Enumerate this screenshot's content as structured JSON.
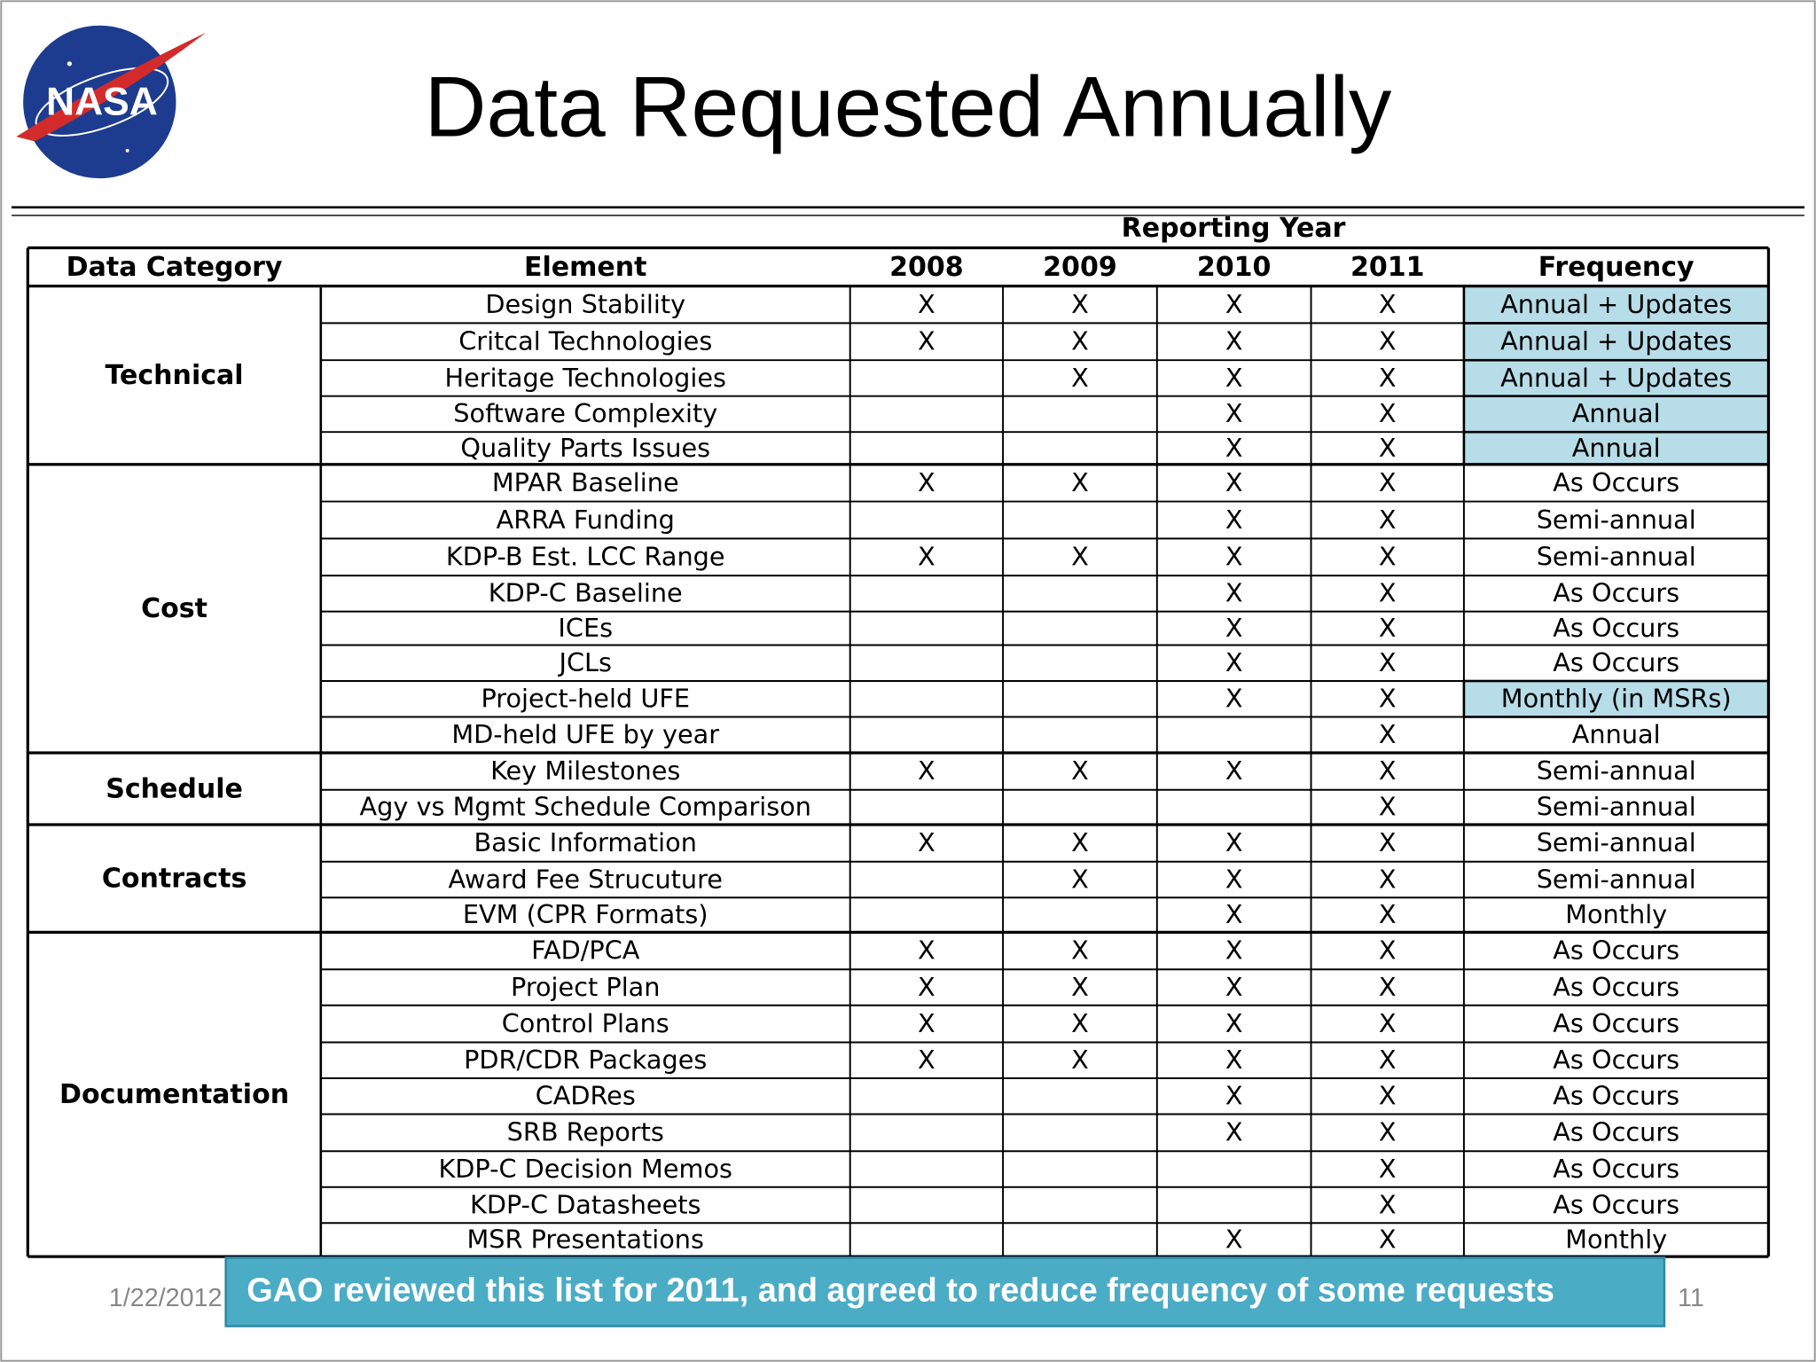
{
  "logo": {
    "text": "NASA"
  },
  "header": {
    "title": "Data Requested Annually"
  },
  "table": {
    "super_header": "Reporting Year",
    "columns": [
      "Data Category",
      "Element",
      "2008",
      "2009",
      "2010",
      "2011",
      "Frequency"
    ],
    "groups": [
      {
        "category": "Technical",
        "rows": [
          {
            "element": "Design Stability",
            "years": [
              "X",
              "X",
              "X",
              "X"
            ],
            "frequency": "Annual + Updates",
            "highlight": true
          },
          {
            "element": "Critcal Technologies",
            "years": [
              "X",
              "X",
              "X",
              "X"
            ],
            "frequency": "Annual + Updates",
            "highlight": true
          },
          {
            "element": "Heritage Technologies",
            "years": [
              null,
              "X",
              "X",
              "X"
            ],
            "frequency": "Annual + Updates",
            "highlight": true
          },
          {
            "element": "Software Complexity",
            "years": [
              null,
              null,
              "X",
              "X"
            ],
            "frequency": "Annual",
            "highlight": true
          },
          {
            "element": "Quality Parts Issues",
            "years": [
              null,
              null,
              "X",
              "X"
            ],
            "frequency": "Annual",
            "highlight": true
          }
        ]
      },
      {
        "category": "Cost",
        "rows": [
          {
            "element": "MPAR Baseline",
            "years": [
              "X",
              "X",
              "X",
              "X"
            ],
            "frequency": "As Occurs",
            "highlight": false
          },
          {
            "element": "ARRA Funding",
            "years": [
              null,
              null,
              "X",
              "X"
            ],
            "frequency": "Semi-annual",
            "highlight": false
          },
          {
            "element": "KDP-B Est. LCC Range",
            "years": [
              "X",
              "X",
              "X",
              "X"
            ],
            "frequency": "Semi-annual",
            "highlight": false
          },
          {
            "element": "KDP-C Baseline",
            "years": [
              null,
              null,
              "X",
              "X"
            ],
            "frequency": "As Occurs",
            "highlight": false
          },
          {
            "element": "ICEs",
            "years": [
              null,
              null,
              "X",
              "X"
            ],
            "frequency": "As Occurs",
            "highlight": false
          },
          {
            "element": "JCLs",
            "years": [
              null,
              null,
              "X",
              "X"
            ],
            "frequency": "As Occurs",
            "highlight": false
          },
          {
            "element": "Project-held UFE",
            "years": [
              null,
              null,
              "X",
              "X"
            ],
            "frequency": "Monthly (in MSRs)",
            "highlight": true
          },
          {
            "element": "MD-held UFE by year",
            "years": [
              null,
              null,
              null,
              "X"
            ],
            "frequency": "Annual",
            "highlight": false
          }
        ]
      },
      {
        "category": "Schedule",
        "rows": [
          {
            "element": "Key Milestones",
            "years": [
              "X",
              "X",
              "X",
              "X"
            ],
            "frequency": "Semi-annual",
            "highlight": false
          },
          {
            "element": "Agy vs Mgmt Schedule Comparison",
            "years": [
              null,
              null,
              null,
              "X"
            ],
            "frequency": "Semi-annual",
            "highlight": false
          }
        ]
      },
      {
        "category": "Contracts",
        "rows": [
          {
            "element": "Basic Information",
            "years": [
              "X",
              "X",
              "X",
              "X"
            ],
            "frequency": "Semi-annual",
            "highlight": false
          },
          {
            "element": "Award Fee Strucuture",
            "years": [
              null,
              "X",
              "X",
              "X"
            ],
            "frequency": "Semi-annual",
            "highlight": false
          },
          {
            "element": "EVM (CPR Formats)",
            "years": [
              null,
              null,
              "X",
              "X"
            ],
            "frequency": "Monthly",
            "highlight": false
          }
        ]
      },
      {
        "category": "Documentation",
        "rows": [
          {
            "element": "FAD/PCA",
            "years": [
              "X",
              "X",
              "X",
              "X"
            ],
            "frequency": "As Occurs",
            "highlight": false
          },
          {
            "element": "Project Plan",
            "years": [
              "X",
              "X",
              "X",
              "X"
            ],
            "frequency": "As Occurs",
            "highlight": false
          },
          {
            "element": "Control Plans",
            "years": [
              "X",
              "X",
              "X",
              "X"
            ],
            "frequency": "As Occurs",
            "highlight": false
          },
          {
            "element": "PDR/CDR Packages",
            "years": [
              "X",
              "X",
              "X",
              "X"
            ],
            "frequency": "As Occurs",
            "highlight": false
          },
          {
            "element": "CADRes",
            "years": [
              null,
              null,
              "X",
              "X"
            ],
            "frequency": "As Occurs",
            "highlight": false
          },
          {
            "element": "SRB Reports",
            "years": [
              null,
              null,
              "X",
              "X"
            ],
            "frequency": "As Occurs",
            "highlight": false
          },
          {
            "element": "KDP-C Decision Memos",
            "years": [
              null,
              null,
              null,
              "X"
            ],
            "frequency": "As Occurs",
            "highlight": false
          },
          {
            "element": "KDP-C Datasheets",
            "years": [
              null,
              null,
              null,
              "X"
            ],
            "frequency": "As Occurs",
            "highlight": false
          },
          {
            "element": "MSR Presentations",
            "years": [
              null,
              null,
              "X",
              "X"
            ],
            "frequency": "Monthly",
            "highlight": false
          }
        ]
      }
    ]
  },
  "footer": {
    "date": "1/22/2012",
    "page": "11"
  },
  "callout": {
    "text": "GAO reviewed this list for 2011, and agreed to reduce frequency of some requests"
  }
}
